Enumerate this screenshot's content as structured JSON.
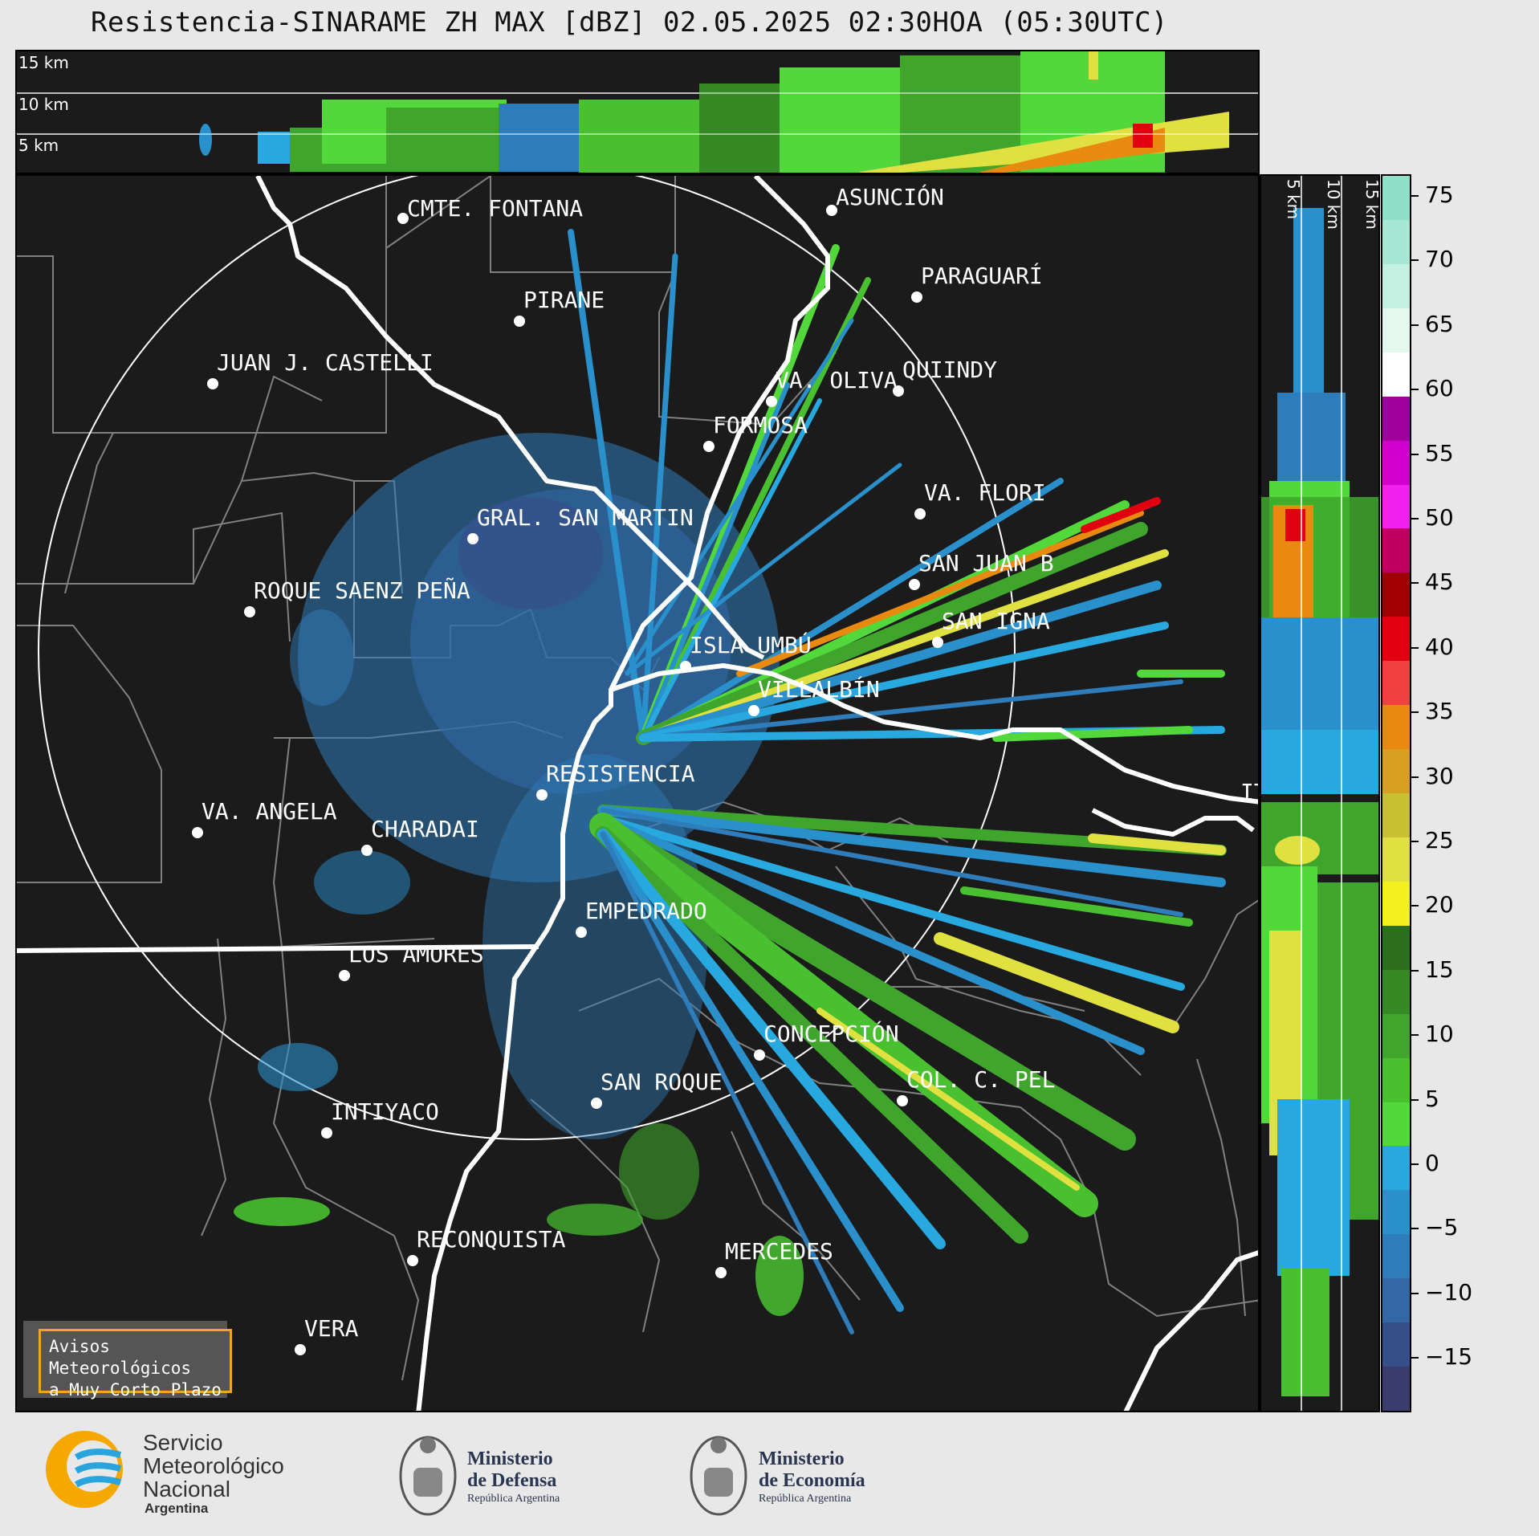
{
  "title": "Resistencia-SINARAME ZH MAX [dBZ] 02.05.2025 02:30HOA (05:30UTC)",
  "top_panel": {
    "km_labels": [
      "15 km",
      "10 km",
      "5 km"
    ]
  },
  "side_panel": {
    "km_labels": [
      "5 km",
      "10 km",
      "15 km"
    ]
  },
  "cities": [
    {
      "name": "CMTE. FONTANA"
    },
    {
      "name": "ASUNCIÓN"
    },
    {
      "name": "PIRANE"
    },
    {
      "name": "PARAGUARÍ"
    },
    {
      "name": "JUAN J. CASTELLI"
    },
    {
      "name": "VA. OLIVA"
    },
    {
      "name": "QUIINDY"
    },
    {
      "name": "FORMOSA"
    },
    {
      "name": "VA. FLORI"
    },
    {
      "name": "GRAL. SAN MARTIN"
    },
    {
      "name": "SAN JUAN B"
    },
    {
      "name": "ROQUE SAENZ PEÑA"
    },
    {
      "name": "SAN IGNA"
    },
    {
      "name": "ISLA UMBÚ"
    },
    {
      "name": "VILLALBÍN"
    },
    {
      "name": "RESISTENCIA"
    },
    {
      "name": "IT"
    },
    {
      "name": "VA. ANGELA"
    },
    {
      "name": "CHARADAI"
    },
    {
      "name": "EMPEDRADO"
    },
    {
      "name": "LOS AMORES"
    },
    {
      "name": "CONCEPCIÓN"
    },
    {
      "name": "SAN ROQUE"
    },
    {
      "name": "COL. C. PEL"
    },
    {
      "name": "INTIYACO"
    },
    {
      "name": "RECONQUISTA"
    },
    {
      "name": "MERCEDES"
    },
    {
      "name": "VERA"
    }
  ],
  "warning": {
    "line1": "Avisos Meteorológicos",
    "line2": "a Muy Corto Plazo"
  },
  "colorbar": {
    "unit": "dBZ",
    "ticks": [
      "75",
      "70",
      "65",
      "60",
      "55",
      "50",
      "45",
      "40",
      "35",
      "30",
      "25",
      "20",
      "15",
      "10",
      "5",
      "0",
      "−5",
      "−10",
      "−15"
    ],
    "colors": [
      "#8ee0c8",
      "#a6e8d4",
      "#c4f0e2",
      "#e4f8f0",
      "#ffffff",
      "#a0009c",
      "#d000d0",
      "#f020f0",
      "#c00060",
      "#a00000",
      "#e00010",
      "#f04040",
      "#e88a10",
      "#d8a020",
      "#c8c030",
      "#e0e040",
      "#f4f020",
      "#2a6e1e",
      "#358a25",
      "#3fa52c",
      "#48c030",
      "#52d83a",
      "#27a8df",
      "#2a90cc",
      "#2f7cba",
      "#3268a6",
      "#354f8a",
      "#3a3c6e"
    ]
  },
  "logos": {
    "smn": {
      "line1": "Servicio",
      "line2": "Meteorológico",
      "line3": "Nacional",
      "line4": "Argentina"
    },
    "defensa": {
      "line1": "Ministerio",
      "line2": "de Defensa",
      "line3": "República Argentina"
    },
    "economia": {
      "line1": "Ministerio",
      "line2": "de Economía",
      "line3": "República Argentina"
    }
  }
}
